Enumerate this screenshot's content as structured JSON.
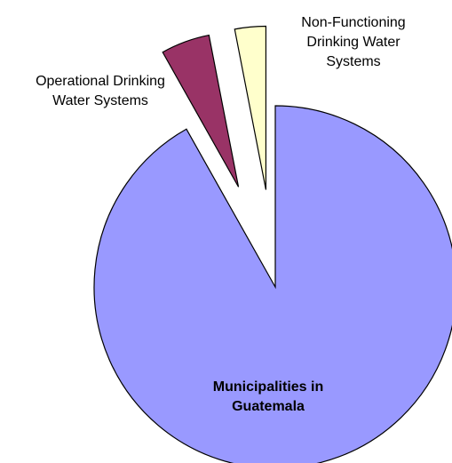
{
  "chart_data": {
    "type": "pie",
    "title": "",
    "slices": [
      {
        "name": "Municipalities in Guatemala",
        "value": 90,
        "color": "#9999ff",
        "exploded": false,
        "label_lines": [
          "Municipalities in",
          "Guatemala"
        ],
        "label_bold": true
      },
      {
        "name": "Operational Drinking Water Systems",
        "value": 5,
        "color": "#993366",
        "exploded": true,
        "label_lines": [
          "Operational Drinking",
          "Water Systems"
        ],
        "label_bold": false
      },
      {
        "name": "Non-Functioning Drinking Water Systems",
        "value": 3,
        "color": "#ffffcc",
        "exploded": true,
        "label_lines": [
          "Non-Functioning",
          "Drinking Water",
          "Systems"
        ],
        "label_bold": false
      }
    ],
    "legend": "none"
  }
}
